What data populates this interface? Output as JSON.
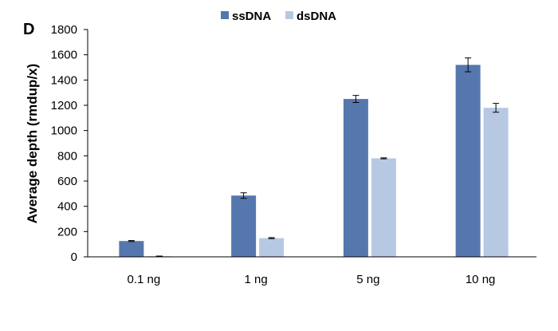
{
  "panel_label": "D",
  "colors": {
    "ssDNA": "#5677ae",
    "dsDNA": "#b7c9e2",
    "axis": "#000000"
  },
  "chart_data": {
    "type": "bar",
    "title": "",
    "xlabel": "",
    "ylabel": "Average depth (rmdup/x)",
    "ylim": [
      0,
      1800
    ],
    "yticks": [
      0,
      200,
      400,
      600,
      800,
      1000,
      1200,
      1400,
      1600,
      1800
    ],
    "categories": [
      "0.1 ng",
      "1 ng",
      "5 ng",
      "10 ng"
    ],
    "series": [
      {
        "name": "ssDNA",
        "values": [
          125,
          485,
          1250,
          1520
        ],
        "errors": [
          4,
          22,
          28,
          55
        ]
      },
      {
        "name": "dsDNA",
        "values": [
          5,
          148,
          780,
          1180
        ],
        "errors": [
          1,
          4,
          4,
          35
        ]
      }
    ],
    "legend_position": "top-center",
    "grid": false
  }
}
